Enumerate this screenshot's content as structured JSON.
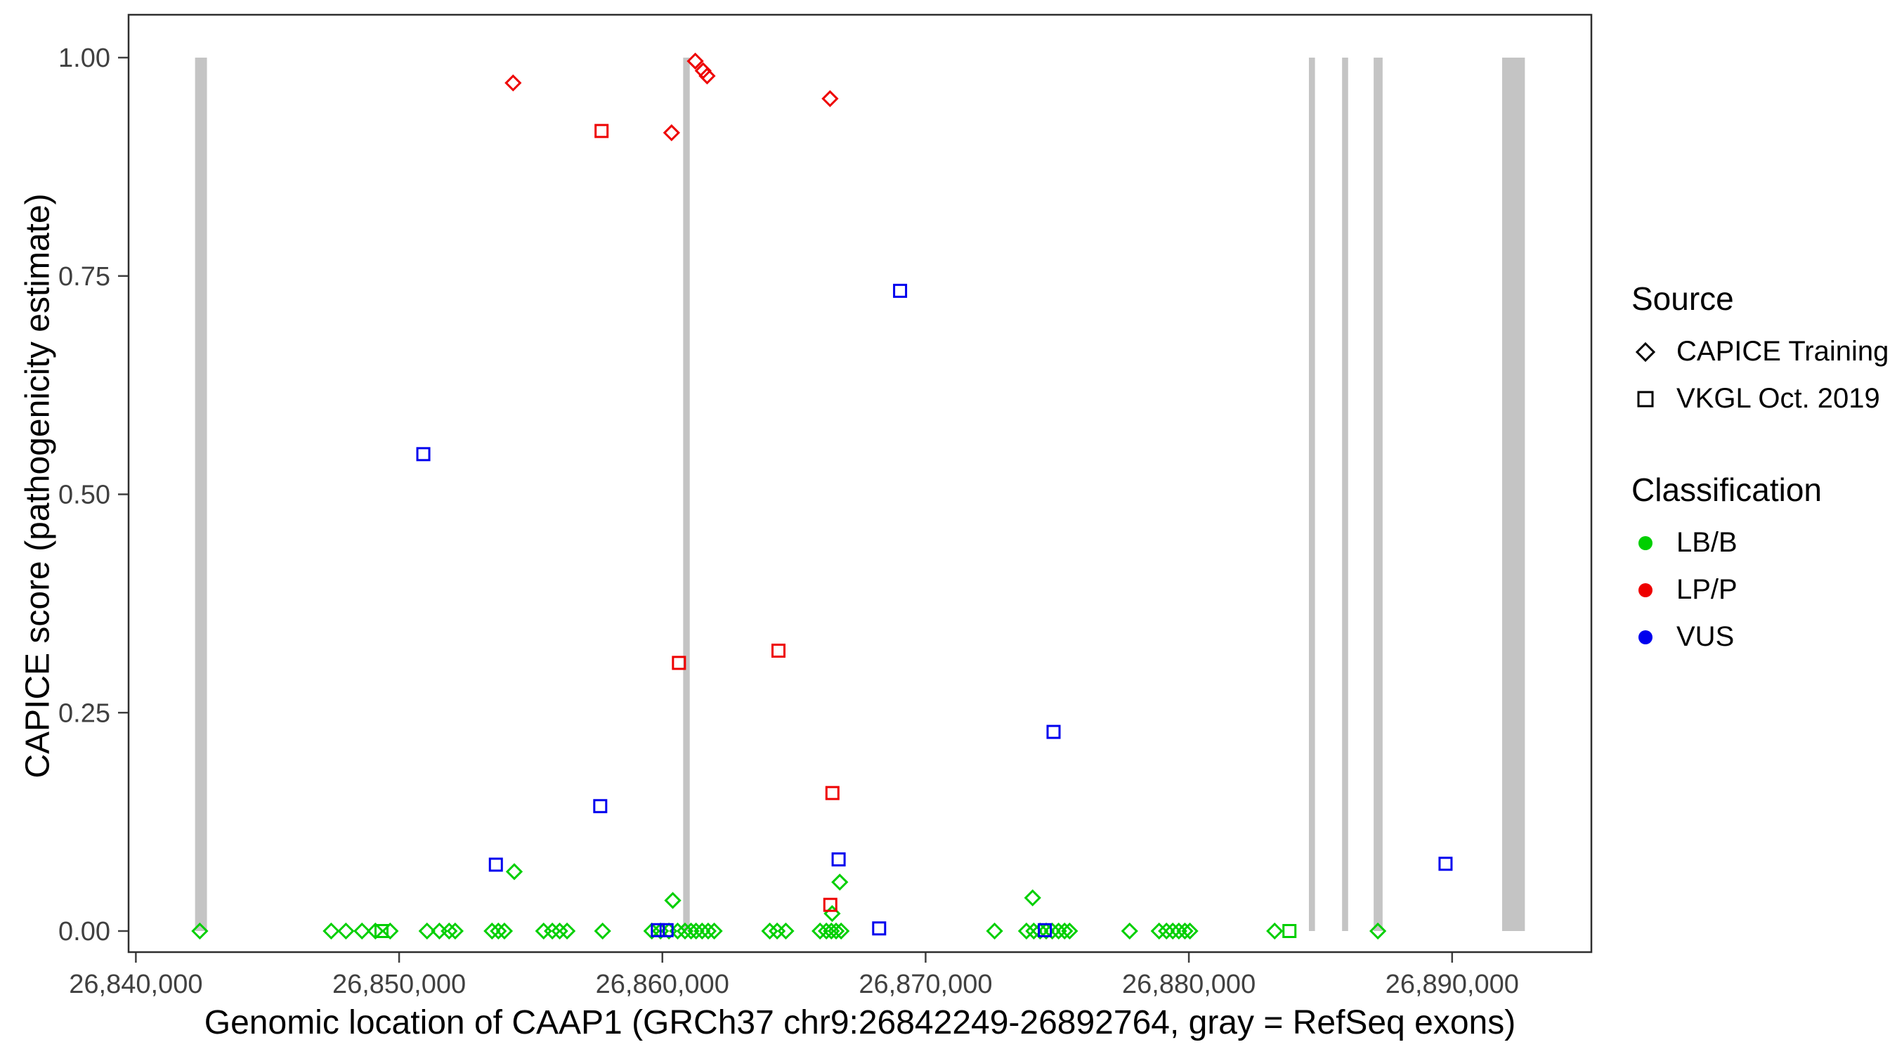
{
  "figure": {
    "x_axis_label": "Genomic location of CAAP1 (GRCh37 chr9:26842249-26892764, gray = RefSeq exons)",
    "y_axis_label": "CAPICE score (pathogenicity estimate)"
  },
  "legend": {
    "source": {
      "title": "Source",
      "items": [
        {
          "label": "CAPICE Training",
          "shape": "diamond"
        },
        {
          "label": "VKGL Oct. 2019",
          "shape": "square"
        }
      ]
    },
    "classification": {
      "title": "Classification",
      "items": [
        {
          "label": "LB/B",
          "color": "#00CF00"
        },
        {
          "label": "LP/P",
          "color": "#EE0000"
        },
        {
          "label": "VUS",
          "color": "#0000EE"
        }
      ]
    }
  },
  "chart_data": {
    "type": "scatter",
    "title": "",
    "xlabel": "Genomic location of CAAP1 (GRCh37 chr9:26842249-26892764, gray = RefSeq exons)",
    "ylabel": "CAPICE score (pathogenicity estimate)",
    "x_domain": [
      26839723,
      26895290
    ],
    "y_domain": [
      0,
      1
    ],
    "x_ticks": [
      {
        "value": 26840000,
        "label": "26,840,000"
      },
      {
        "value": 26850000,
        "label": "26,850,000"
      },
      {
        "value": 26860000,
        "label": "26,860,000"
      },
      {
        "value": 26870000,
        "label": "26,870,000"
      },
      {
        "value": 26880000,
        "label": "26,880,000"
      },
      {
        "value": 26890000,
        "label": "26,890,000"
      }
    ],
    "y_ticks": [
      {
        "value": 0.0,
        "label": "0.00"
      },
      {
        "value": 0.25,
        "label": "0.25"
      },
      {
        "value": 0.5,
        "label": "0.50"
      },
      {
        "value": 0.75,
        "label": "0.75"
      },
      {
        "value": 1.0,
        "label": "1.00"
      }
    ],
    "exon_color": "#C4C4C4",
    "exons": [
      [
        26842249,
        26842700
      ],
      [
        26860790,
        26861040
      ],
      [
        26884560,
        26884790
      ],
      [
        26885820,
        26886050
      ],
      [
        26887020,
        26887360
      ],
      [
        26891900,
        26892764
      ]
    ],
    "colors": {
      "LB/B": "#00CF00",
      "LP/P": "#EE0000",
      "VUS": "#0000EE"
    },
    "series": [
      {
        "name": "CAPICE Training LB/B",
        "source": "CAPICE Training",
        "classification": "LB/B",
        "shape": "diamond",
        "points": [
          [
            26854375,
            0.068
          ],
          [
            26860395,
            0.035
          ],
          [
            26866740,
            0.056
          ],
          [
            26874065,
            0.038
          ],
          [
            26866450,
            0.02
          ],
          [
            26842430,
            0
          ],
          [
            26847420,
            0
          ],
          [
            26847980,
            0
          ],
          [
            26848590,
            0
          ],
          [
            26849100,
            0
          ],
          [
            26849660,
            0
          ],
          [
            26851060,
            0
          ],
          [
            26851530,
            0
          ],
          [
            26851900,
            0
          ],
          [
            26852130,
            0
          ],
          [
            26853530,
            0
          ],
          [
            26853770,
            0
          ],
          [
            26854000,
            0
          ],
          [
            26855490,
            0
          ],
          [
            26855820,
            0
          ],
          [
            26856100,
            0
          ],
          [
            26856380,
            0
          ],
          [
            26857730,
            0
          ],
          [
            26859600,
            0
          ],
          [
            26859930,
            0
          ],
          [
            26860250,
            0
          ],
          [
            26860580,
            0
          ],
          [
            26860860,
            0
          ],
          [
            26861090,
            0
          ],
          [
            26861280,
            0
          ],
          [
            26861510,
            0
          ],
          [
            26861740,
            0
          ],
          [
            26861970,
            0
          ],
          [
            26864080,
            0
          ],
          [
            26864360,
            0
          ],
          [
            26864690,
            0
          ],
          [
            26865990,
            0
          ],
          [
            26866230,
            0
          ],
          [
            26866420,
            0
          ],
          [
            26866600,
            0
          ],
          [
            26866790,
            0
          ],
          [
            26872620,
            0
          ],
          [
            26873830,
            0
          ],
          [
            26874110,
            0
          ],
          [
            26874350,
            0
          ],
          [
            26874580,
            0
          ],
          [
            26874810,
            0
          ],
          [
            26875050,
            0
          ],
          [
            26875280,
            0
          ],
          [
            26875470,
            0
          ],
          [
            26877750,
            0
          ],
          [
            26878870,
            0
          ],
          [
            26879150,
            0
          ],
          [
            26879390,
            0
          ],
          [
            26879620,
            0
          ],
          [
            26879850,
            0
          ],
          [
            26880040,
            0
          ],
          [
            26883260,
            0
          ],
          [
            26887180,
            0
          ]
        ]
      },
      {
        "name": "VKGL LB/B",
        "source": "VKGL Oct. 2019",
        "classification": "LB/B",
        "shape": "square",
        "points": [
          [
            26849330,
            0
          ],
          [
            26883820,
            0
          ]
        ]
      },
      {
        "name": "VKGL VUS",
        "source": "VKGL Oct. 2019",
        "classification": "VUS",
        "shape": "square",
        "points": [
          [
            26850920,
            0.546
          ],
          [
            26869030,
            0.733
          ],
          [
            26853675,
            0.076
          ],
          [
            26857640,
            0.143
          ],
          [
            26874860,
            0.228
          ],
          [
            26866695,
            0.082
          ],
          [
            26868235,
            0.003
          ],
          [
            26889750,
            0.077
          ],
          [
            26859830,
            0.001
          ],
          [
            26860160,
            0.001
          ],
          [
            26874530,
            0.001
          ]
        ]
      },
      {
        "name": "VKGL LP/P",
        "source": "VKGL Oct. 2019",
        "classification": "LP/P",
        "shape": "square",
        "points": [
          [
            26857690,
            0.916
          ],
          [
            26860630,
            0.307
          ],
          [
            26864410,
            0.321
          ],
          [
            26866460,
            0.158
          ],
          [
            26866380,
            0.03
          ]
        ]
      },
      {
        "name": "CAPICE Training LP/P",
        "source": "CAPICE Training",
        "classification": "LP/P",
        "shape": "diamond",
        "points": [
          [
            26854330,
            0.971
          ],
          [
            26861250,
            0.996
          ],
          [
            26861550,
            0.985
          ],
          [
            26861700,
            0.979
          ],
          [
            26860350,
            0.914
          ],
          [
            26866370,
            0.953
          ]
        ]
      }
    ]
  }
}
